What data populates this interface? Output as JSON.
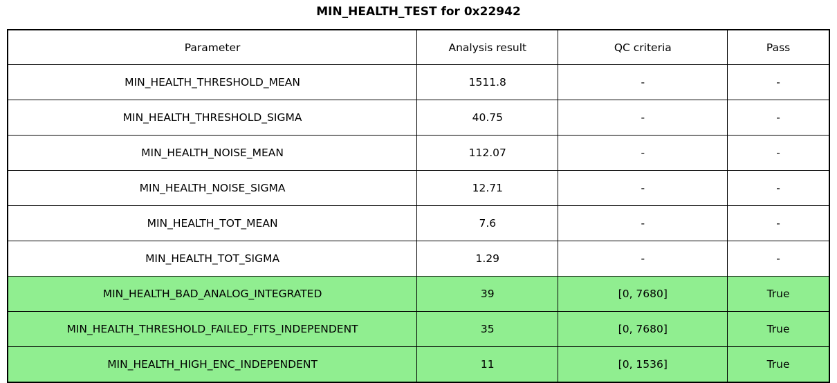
{
  "title": "MIN_HEALTH_TEST for 0x22942",
  "colors": {
    "highlight_green": "#90EE90",
    "border": "#000000",
    "background": "#FFFFFF",
    "text": "#000000"
  },
  "chart_data": {
    "type": "table",
    "title": "MIN_HEALTH_TEST for 0x22942",
    "columns": [
      "Parameter",
      "Analysis result",
      "QC criteria",
      "Pass"
    ],
    "rows": [
      {
        "parameter": "MIN_HEALTH_THRESHOLD_MEAN",
        "analysis_result": "1511.8",
        "qc_criteria": "-",
        "pass": "-",
        "highlighted": false
      },
      {
        "parameter": "MIN_HEALTH_THRESHOLD_SIGMA",
        "analysis_result": "40.75",
        "qc_criteria": "-",
        "pass": "-",
        "highlighted": false
      },
      {
        "parameter": "MIN_HEALTH_NOISE_MEAN",
        "analysis_result": "112.07",
        "qc_criteria": "-",
        "pass": "-",
        "highlighted": false
      },
      {
        "parameter": "MIN_HEALTH_NOISE_SIGMA",
        "analysis_result": "12.71",
        "qc_criteria": "-",
        "pass": "-",
        "highlighted": false
      },
      {
        "parameter": "MIN_HEALTH_TOT_MEAN",
        "analysis_result": "7.6",
        "qc_criteria": "-",
        "pass": "-",
        "highlighted": false
      },
      {
        "parameter": "MIN_HEALTH_TOT_SIGMA",
        "analysis_result": "1.29",
        "qc_criteria": "-",
        "pass": "-",
        "highlighted": false
      },
      {
        "parameter": "MIN_HEALTH_BAD_ANALOG_INTEGRATED",
        "analysis_result": "39",
        "qc_criteria": "[0, 7680]",
        "pass": "True",
        "highlighted": true
      },
      {
        "parameter": "MIN_HEALTH_THRESHOLD_FAILED_FITS_INDEPENDENT",
        "analysis_result": "35",
        "qc_criteria": "[0, 7680]",
        "pass": "True",
        "highlighted": true
      },
      {
        "parameter": "MIN_HEALTH_HIGH_ENC_INDEPENDENT",
        "analysis_result": "11",
        "qc_criteria": "[0, 1536]",
        "pass": "True",
        "highlighted": true
      }
    ],
    "layout": {
      "grid": true,
      "highlighted_row_color": "#90EE90",
      "header_row": true
    }
  }
}
